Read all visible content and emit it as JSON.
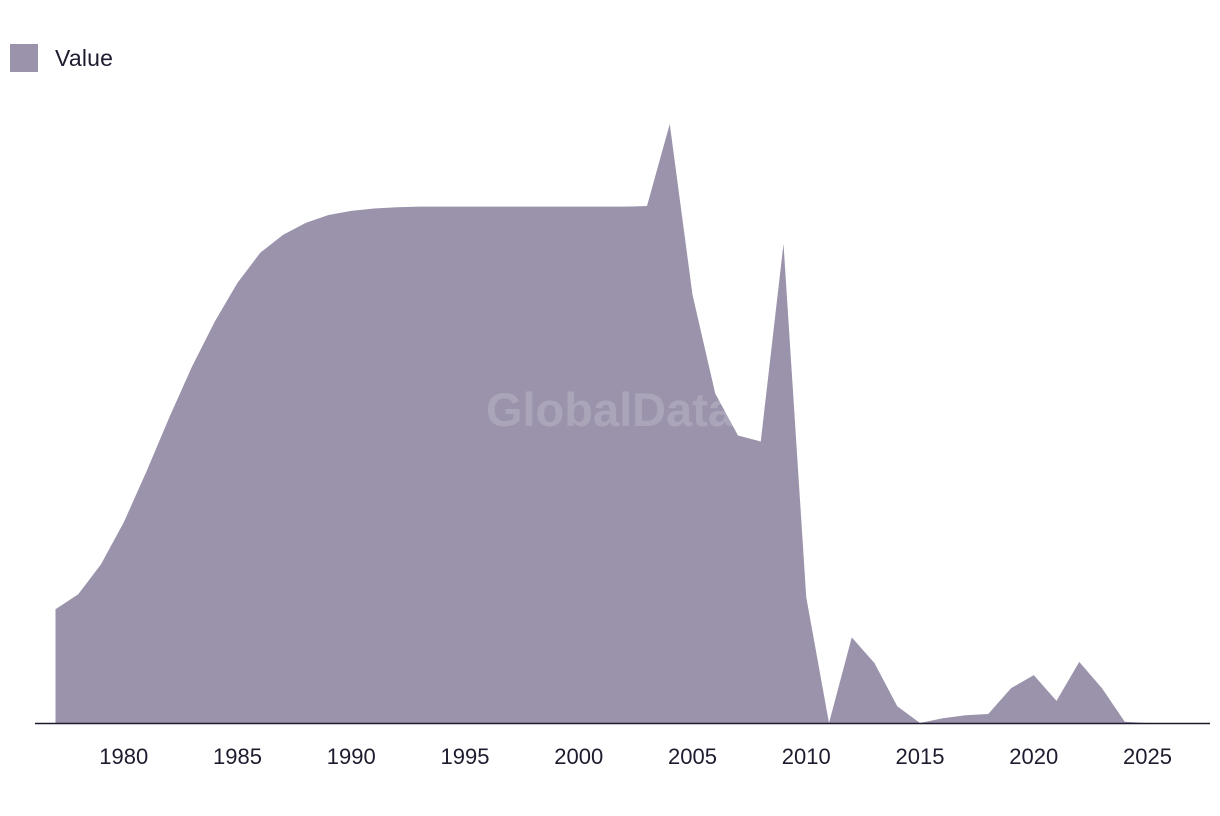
{
  "chart_data": {
    "type": "area",
    "title": "",
    "xlabel": "",
    "ylabel": "",
    "series": [
      {
        "name": "Value",
        "color": "#9b93ab",
        "x": [
          1977,
          1978,
          1979,
          1980,
          1981,
          1982,
          1983,
          1984,
          1985,
          1986,
          1987,
          1988,
          1989,
          1990,
          1991,
          1992,
          1993,
          1994,
          1995,
          1996,
          1997,
          1998,
          1999,
          2000,
          2001,
          2002,
          2003,
          2004,
          2005,
          2006,
          2007,
          2008,
          2009,
          2010,
          2011,
          2012,
          2013,
          2014,
          2015,
          2016,
          2017,
          2018,
          2019,
          2020,
          2021,
          2022,
          2023,
          2024,
          2025,
          2026
        ],
        "values": [
          19,
          21.5,
          26.5,
          33.5,
          42,
          51,
          59.5,
          67,
          73.5,
          78.5,
          81.5,
          83.5,
          84.8,
          85.5,
          85.9,
          86.1,
          86.2,
          86.2,
          86.2,
          86.2,
          86.2,
          86.2,
          86.2,
          86.2,
          86.2,
          86.2,
          86.3,
          100,
          71.5,
          55,
          48,
          47,
          80,
          21,
          0,
          14.3,
          10,
          2.8,
          0,
          0.8,
          1.3,
          1.5,
          5.8,
          8,
          3.7,
          10.2,
          5.8,
          0.2,
          0,
          0
        ]
      }
    ],
    "x_ticks": [
      1980,
      1985,
      1990,
      1995,
      2000,
      2005,
      2010,
      2015,
      2020,
      2025
    ],
    "xlim": [
      1977,
      2026.5
    ],
    "ylim": [
      0,
      100
    ],
    "grid": false,
    "legend_position": "top-left",
    "watermark": "GlobalData"
  }
}
